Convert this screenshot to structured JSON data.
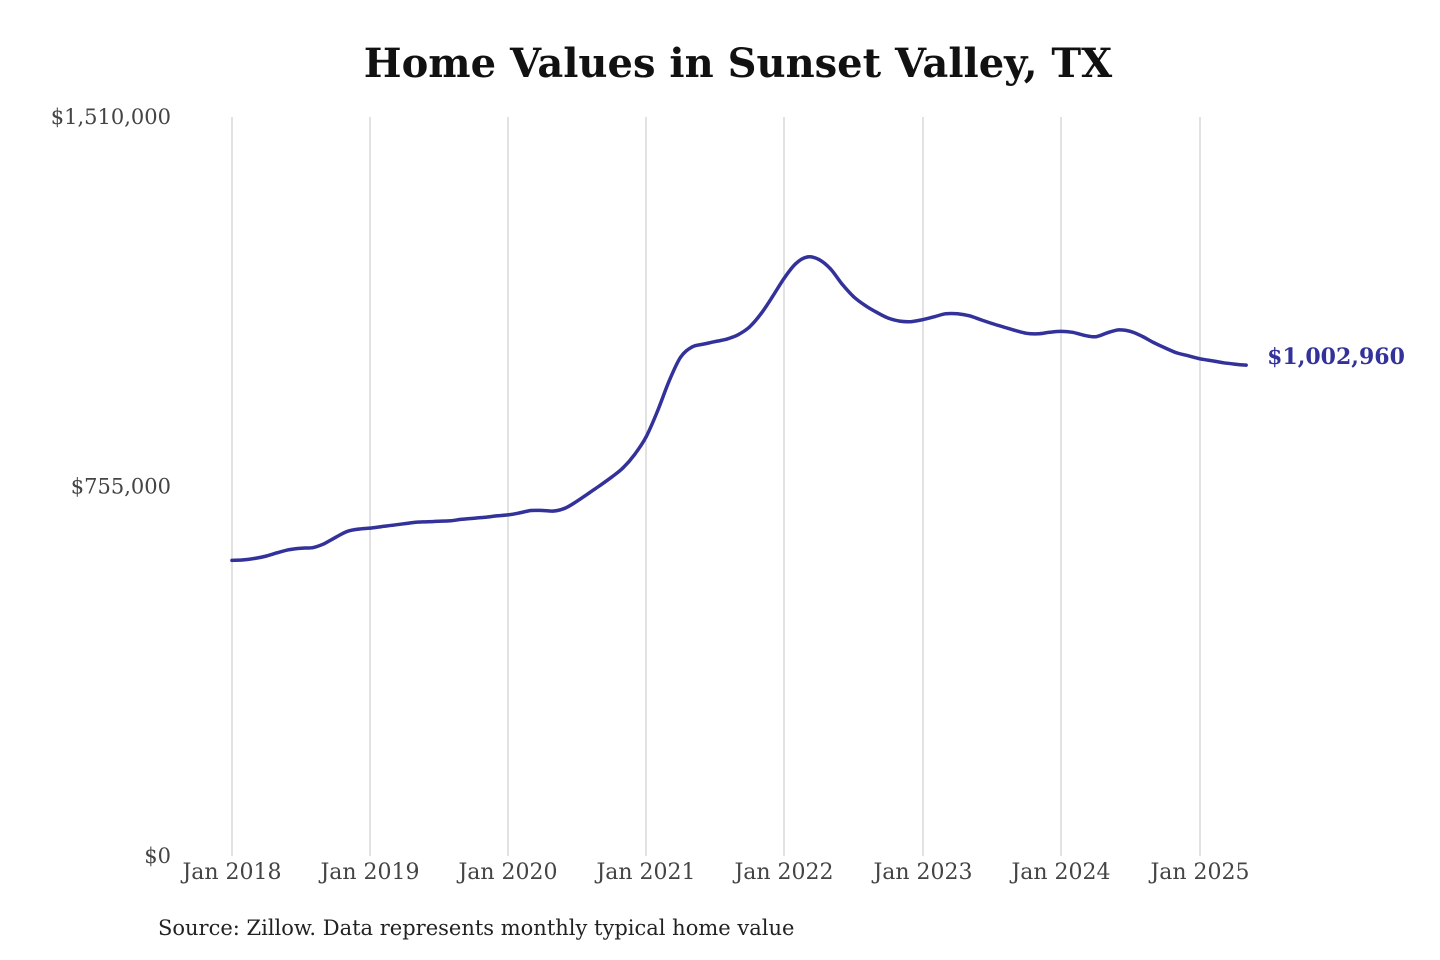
{
  "chart_data": {
    "type": "line",
    "title": "Home Values in Sunset Valley, TX",
    "source": "Source: Zillow. Data represents monthly typical home value",
    "ylim": [
      0,
      1510000
    ],
    "y_ticks": [
      {
        "value": 0,
        "label": "$0"
      },
      {
        "value": 755000,
        "label": "$755,000"
      },
      {
        "value": 1510000,
        "label": "$1,510,000"
      }
    ],
    "x_ticks": [
      "Jan 2018",
      "Jan 2019",
      "Jan 2020",
      "Jan 2021",
      "Jan 2022",
      "Jan 2023",
      "Jan 2024",
      "Jan 2025"
    ],
    "grid": "vertical",
    "line_color": "#33329a",
    "end_label": "$1,002,960",
    "series": [
      {
        "x": [
          "2018-01",
          "2018-02",
          "2018-03",
          "2018-04",
          "2018-05",
          "2018-06",
          "2018-07",
          "2018-08",
          "2018-09",
          "2018-10",
          "2018-11",
          "2018-12",
          "2019-01",
          "2019-02",
          "2019-03",
          "2019-04",
          "2019-05",
          "2019-06",
          "2019-07",
          "2019-08",
          "2019-09",
          "2019-10",
          "2019-11",
          "2019-12",
          "2020-01",
          "2020-02",
          "2020-03",
          "2020-04",
          "2020-05",
          "2020-06",
          "2020-07",
          "2020-08",
          "2020-09",
          "2020-10",
          "2020-11",
          "2020-12",
          "2021-01",
          "2021-02",
          "2021-03",
          "2021-04",
          "2021-05",
          "2021-06",
          "2021-07",
          "2021-08",
          "2021-09",
          "2021-10",
          "2021-11",
          "2021-12",
          "2022-01",
          "2022-02",
          "2022-03",
          "2022-04",
          "2022-05",
          "2022-06",
          "2022-07",
          "2022-08",
          "2022-09",
          "2022-10",
          "2022-11",
          "2022-12",
          "2023-01",
          "2023-02",
          "2023-03",
          "2023-04",
          "2023-05",
          "2023-06",
          "2023-07",
          "2023-08",
          "2023-09",
          "2023-10",
          "2023-11",
          "2023-12",
          "2024-01",
          "2024-02",
          "2024-03",
          "2024-04",
          "2024-05",
          "2024-06",
          "2024-07",
          "2024-08",
          "2024-09",
          "2024-10",
          "2024-11",
          "2024-12",
          "2025-01",
          "2025-02",
          "2025-03",
          "2025-04",
          "2025-05"
        ],
        "values": [
          604000,
          605000,
          608000,
          613000,
          620000,
          626000,
          629000,
          630000,
          638000,
          651000,
          663000,
          668000,
          670000,
          673000,
          676000,
          679000,
          682000,
          683000,
          684000,
          685000,
          688000,
          690000,
          692000,
          695000,
          697000,
          701000,
          706000,
          706000,
          705000,
          711000,
          725000,
          741000,
          757000,
          774000,
          793000,
          820000,
          856000,
          909000,
          970000,
          1019000,
          1040000,
          1046000,
          1051000,
          1056000,
          1065000,
          1081000,
          1108000,
          1143000,
          1180000,
          1210000,
          1224000,
          1219000,
          1200000,
          1169000,
          1143000,
          1125000,
          1111000,
          1099000,
          1093000,
          1092000,
          1096000,
          1102000,
          1108000,
          1108000,
          1104000,
          1096000,
          1088000,
          1081000,
          1074000,
          1068000,
          1067000,
          1070000,
          1072000,
          1070000,
          1064000,
          1061000,
          1069000,
          1075000,
          1072000,
          1062000,
          1049000,
          1038000,
          1028000,
          1022000,
          1016000,
          1012000,
          1008000,
          1005000,
          1002960
        ]
      }
    ]
  }
}
